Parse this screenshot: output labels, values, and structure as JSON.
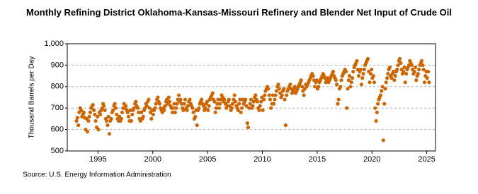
{
  "chart_data": {
    "type": "scatter",
    "title": "Monthly Refining District Oklahoma-Kansas-Missouri Refinery and Blender Net Input of Crude Oil",
    "y_label": "Thousand Barrels per Day",
    "source": "Source: U.S. Energy Information Administration",
    "grid": true,
    "xlim": [
      1992.2,
      2025.8
    ],
    "xticks": [
      1995,
      2000,
      2005,
      2010,
      2015,
      2020,
      2025
    ],
    "ylim": [
      500,
      1000
    ],
    "yticks": [
      500,
      600,
      700,
      800,
      900,
      {
        "value": 1000,
        "label": "1,000"
      }
    ],
    "series": [
      {
        "name": "Net Input",
        "color": "#cc6600",
        "x": [
          1993.04,
          1993.13,
          1993.21,
          1993.29,
          1993.38,
          1993.46,
          1993.54,
          1993.63,
          1993.71,
          1993.79,
          1993.88,
          1993.96,
          1994.04,
          1994.13,
          1994.21,
          1994.29,
          1994.38,
          1994.46,
          1994.54,
          1994.63,
          1994.71,
          1994.79,
          1994.88,
          1994.96,
          1995.04,
          1995.13,
          1995.21,
          1995.29,
          1995.38,
          1995.46,
          1995.54,
          1995.63,
          1995.71,
          1995.79,
          1995.88,
          1995.96,
          1996.04,
          1996.13,
          1996.21,
          1996.29,
          1996.38,
          1996.46,
          1996.54,
          1996.63,
          1996.71,
          1996.79,
          1996.88,
          1996.96,
          1997.04,
          1997.13,
          1997.21,
          1997.29,
          1997.38,
          1997.46,
          1997.54,
          1997.63,
          1997.71,
          1997.79,
          1997.88,
          1997.96,
          1998.04,
          1998.13,
          1998.21,
          1998.29,
          1998.38,
          1998.46,
          1998.54,
          1998.63,
          1998.71,
          1998.79,
          1998.88,
          1998.96,
          1999.04,
          1999.13,
          1999.21,
          1999.29,
          1999.38,
          1999.46,
          1999.54,
          1999.63,
          1999.71,
          1999.79,
          1999.88,
          1999.96,
          2000.04,
          2000.13,
          2000.21,
          2000.29,
          2000.38,
          2000.46,
          2000.54,
          2000.63,
          2000.71,
          2000.79,
          2000.88,
          2000.96,
          2001.04,
          2001.13,
          2001.21,
          2001.29,
          2001.38,
          2001.46,
          2001.54,
          2001.63,
          2001.71,
          2001.79,
          2001.88,
          2001.96,
          2002.04,
          2002.13,
          2002.21,
          2002.29,
          2002.38,
          2002.46,
          2002.54,
          2002.63,
          2002.71,
          2002.79,
          2002.88,
          2002.96,
          2003.04,
          2003.13,
          2003.21,
          2003.29,
          2003.38,
          2003.46,
          2003.54,
          2003.63,
          2003.71,
          2003.79,
          2003.88,
          2003.96,
          2004.04,
          2004.13,
          2004.21,
          2004.29,
          2004.38,
          2004.46,
          2004.54,
          2004.63,
          2004.71,
          2004.79,
          2004.88,
          2004.96,
          2005.04,
          2005.13,
          2005.21,
          2005.29,
          2005.38,
          2005.46,
          2005.54,
          2005.63,
          2005.71,
          2005.79,
          2005.88,
          2005.96,
          2006.04,
          2006.13,
          2006.21,
          2006.29,
          2006.38,
          2006.46,
          2006.54,
          2006.63,
          2006.71,
          2006.79,
          2006.88,
          2006.96,
          2007.04,
          2007.13,
          2007.21,
          2007.29,
          2007.38,
          2007.46,
          2007.54,
          2007.63,
          2007.71,
          2007.79,
          2007.88,
          2007.96,
          2008.04,
          2008.13,
          2008.21,
          2008.29,
          2008.38,
          2008.46,
          2008.54,
          2008.63,
          2008.71,
          2008.79,
          2008.88,
          2008.96,
          2009.04,
          2009.13,
          2009.21,
          2009.29,
          2009.38,
          2009.46,
          2009.54,
          2009.63,
          2009.71,
          2009.79,
          2009.88,
          2009.96,
          2010.04,
          2010.13,
          2010.21,
          2010.29,
          2010.38,
          2010.46,
          2010.54,
          2010.63,
          2010.71,
          2010.79,
          2010.88,
          2010.96,
          2011.04,
          2011.13,
          2011.21,
          2011.29,
          2011.38,
          2011.46,
          2011.54,
          2011.63,
          2011.71,
          2011.79,
          2011.88,
          2011.96,
          2012.04,
          2012.13,
          2012.21,
          2012.29,
          2012.38,
          2012.46,
          2012.54,
          2012.63,
          2012.71,
          2012.79,
          2012.88,
          2012.96,
          2013.04,
          2013.13,
          2013.21,
          2013.29,
          2013.38,
          2013.46,
          2013.54,
          2013.63,
          2013.71,
          2013.79,
          2013.88,
          2013.96,
          2014.04,
          2014.13,
          2014.21,
          2014.29,
          2014.38,
          2014.46,
          2014.54,
          2014.63,
          2014.71,
          2014.79,
          2014.88,
          2014.96,
          2015.04,
          2015.13,
          2015.21,
          2015.29,
          2015.38,
          2015.46,
          2015.54,
          2015.63,
          2015.71,
          2015.79,
          2015.88,
          2015.96,
          2016.04,
          2016.13,
          2016.21,
          2016.29,
          2016.38,
          2016.46,
          2016.54,
          2016.63,
          2016.71,
          2016.79,
          2016.88,
          2016.96,
          2017.04,
          2017.13,
          2017.21,
          2017.29,
          2017.38,
          2017.46,
          2017.54,
          2017.63,
          2017.71,
          2017.79,
          2017.88,
          2017.96,
          2018.04,
          2018.13,
          2018.21,
          2018.29,
          2018.38,
          2018.46,
          2018.54,
          2018.63,
          2018.71,
          2018.79,
          2018.88,
          2018.96,
          2019.04,
          2019.13,
          2019.21,
          2019.29,
          2019.38,
          2019.46,
          2019.54,
          2019.63,
          2019.71,
          2019.79,
          2019.88,
          2019.96,
          2020.04,
          2020.13,
          2020.21,
          2020.29,
          2020.38,
          2020.46,
          2020.54,
          2020.63,
          2020.71,
          2020.79,
          2020.88,
          2020.96,
          2021.04,
          2021.13,
          2021.21,
          2021.29,
          2021.38,
          2021.46,
          2021.54,
          2021.63,
          2021.71,
          2021.79,
          2021.88,
          2021.96,
          2022.04,
          2022.13,
          2022.21,
          2022.29,
          2022.38,
          2022.46,
          2022.54,
          2022.63,
          2022.71,
          2022.79,
          2022.88,
          2022.96,
          2023.04,
          2023.13,
          2023.21,
          2023.29,
          2023.38,
          2023.46,
          2023.54,
          2023.63,
          2023.71,
          2023.79,
          2023.88,
          2023.96,
          2024.04,
          2024.13,
          2024.21,
          2024.29,
          2024.38,
          2024.46,
          2024.54,
          2024.63,
          2024.71,
          2024.79,
          2024.88,
          2024.96,
          2025.04,
          2025.13,
          2025.21
        ],
        "values": [
          640,
          655,
          620,
          680,
          700,
          690,
          660,
          670,
          680,
          655,
          600,
          650,
          590,
          640,
          660,
          680,
          700,
          710,
          715,
          690,
          670,
          640,
          610,
          660,
          600,
          680,
          670,
          690,
          700,
          720,
          710,
          690,
          650,
          640,
          620,
          660,
          580,
          640,
          650,
          680,
          690,
          710,
          720,
          700,
          670,
          650,
          640,
          660,
          640,
          650,
          680,
          700,
          720,
          700,
          710,
          690,
          680,
          660,
          640,
          690,
          640,
          670,
          690,
          700,
          720,
          730,
          710,
          700,
          680,
          650,
          640,
          680,
          650,
          660,
          690,
          700,
          720,
          710,
          730,
          740,
          700,
          680,
          650,
          690,
          670,
          690,
          700,
          720,
          740,
          750,
          730,
          720,
          700,
          690,
          680,
          700,
          690,
          710,
          730,
          740,
          720,
          750,
          730,
          710,
          700,
          680,
          700,
          720,
          680,
          700,
          720,
          740,
          760,
          730,
          740,
          720,
          700,
          690,
          720,
          740,
          700,
          690,
          710,
          730,
          740,
          720,
          710,
          700,
          680,
          650,
          660,
          690,
          620,
          690,
          700,
          720,
          730,
          740,
          720,
          710,
          690,
          700,
          720,
          730,
          690,
          710,
          740,
          750,
          760,
          770,
          740,
          730,
          680,
          700,
          720,
          740,
          700,
          720,
          740,
          760,
          750,
          730,
          740,
          720,
          700,
          710,
          730,
          740,
          710,
          690,
          700,
          720,
          740,
          760,
          730,
          710,
          700,
          690,
          720,
          740,
          680,
          700,
          740,
          720,
          730,
          740,
          710,
          630,
          610,
          700,
          720,
          740,
          700,
          710,
          730,
          750,
          760,
          740,
          730,
          700,
          690,
          710,
          730,
          750,
          690,
          740,
          760,
          780,
          790,
          800,
          790,
          760,
          740,
          700,
          720,
          760,
          720,
          740,
          760,
          780,
          800,
          810,
          790,
          770,
          750,
          760,
          780,
          790,
          740,
          620,
          760,
          780,
          790,
          800,
          810,
          790,
          770,
          780,
          790,
          800,
          770,
          780,
          790,
          800,
          810,
          820,
          830,
          800,
          780,
          760,
          790,
          810,
          800,
          810,
          820,
          830,
          840,
          850,
          860,
          850,
          830,
          800,
          820,
          830,
          790,
          800,
          820,
          830,
          840,
          850,
          860,
          850,
          840,
          820,
          830,
          840,
          820,
          830,
          840,
          850,
          860,
          870,
          850,
          840,
          830,
          810,
          720,
          740,
          790,
          800,
          830,
          850,
          860,
          870,
          880,
          870,
          700,
          790,
          830,
          850,
          800,
          820,
          840,
          870,
          890,
          900,
          910,
          920,
          880,
          850,
          870,
          880,
          810,
          840,
          860,
          880,
          900,
          910,
          920,
          930,
          870,
          820,
          860,
          880,
          840,
          850,
          820,
          700,
          640,
          680,
          720,
          740,
          750,
          760,
          780,
          800,
          550,
          720,
          790,
          820,
          840,
          860,
          880,
          890,
          850,
          840,
          860,
          870,
          830,
          850,
          870,
          880,
          900,
          920,
          930,
          910,
          880,
          860,
          870,
          890,
          820,
          860,
          880,
          890,
          900,
          920,
          910,
          900,
          880,
          860,
          870,
          890,
          830,
          850,
          860,
          880,
          900,
          910,
          920,
          900,
          880,
          820,
          850,
          870,
          840,
          870,
          820
        ]
      }
    ]
  }
}
